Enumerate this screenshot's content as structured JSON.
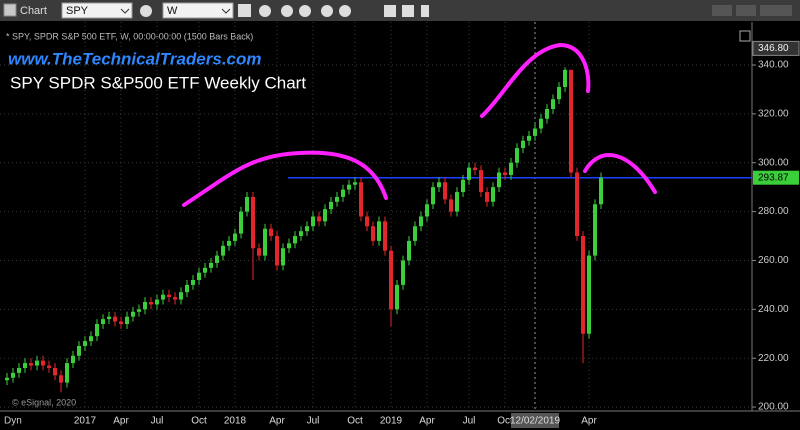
{
  "toolbar": {
    "window": "Chart",
    "symbol": "SPY",
    "interval": "W"
  },
  "chart_data": {
    "type": "candlestick",
    "header": "* SPY, SPDR S&P 500 ETF, W, 00:00-00:00 (1500 Bars Back)",
    "website": "www.TheTechnicalTraders.com",
    "title": "SPY SPDR S&P500 ETF Weekly Chart",
    "copyright": "© eSignal, 2020",
    "corner_label": "Dyn",
    "up_color": "#3ccf3c",
    "down_color": "#e3262b",
    "resistance_color": "#1f3fff",
    "grid": true,
    "ylim": [
      198.8,
      357.6
    ],
    "yticks": [
      {
        "value": 200,
        "label": "200.00"
      },
      {
        "value": 220,
        "label": "220.00"
      },
      {
        "value": 240,
        "label": "240.00"
      },
      {
        "value": 260,
        "label": "260.00"
      },
      {
        "value": 280,
        "label": "280.00"
      },
      {
        "value": 300,
        "label": "300.00"
      },
      {
        "value": 320,
        "label": "320.00"
      },
      {
        "value": 340,
        "label": "340.00"
      }
    ],
    "crosshair_price": {
      "value": 346.8,
      "label": "346.80"
    },
    "last_price": 293.87,
    "categories": [
      null,
      null,
      null,
      null,
      null,
      null,
      null,
      null,
      null,
      null,
      null,
      null,
      null,
      "2017",
      null,
      null,
      null,
      null,
      null,
      "Apr",
      null,
      null,
      null,
      null,
      null,
      "Jul",
      null,
      null,
      null,
      null,
      null,
      null,
      "Oct",
      null,
      null,
      null,
      null,
      null,
      "2018",
      null,
      null,
      null,
      null,
      null,
      null,
      "Apr",
      null,
      null,
      null,
      null,
      null,
      "Jul",
      null,
      null,
      null,
      null,
      null,
      null,
      "Oct",
      null,
      null,
      null,
      null,
      null,
      "2019",
      null,
      null,
      null,
      null,
      null,
      "Apr",
      null,
      null,
      null,
      null,
      null,
      null,
      "Jul",
      null,
      null,
      null,
      null,
      null,
      "Oct",
      null,
      null,
      null,
      null,
      "12/02/2019",
      null,
      null,
      null,
      null,
      null,
      null,
      null,
      null,
      "Apr",
      null,
      null
    ],
    "open": [
      211,
      212,
      214,
      216,
      218,
      217,
      219,
      217,
      216,
      213,
      210,
      218,
      221,
      225,
      227,
      229,
      234,
      236,
      237,
      235,
      234,
      237,
      239,
      240,
      243,
      242,
      244,
      246,
      245,
      244,
      247,
      250,
      252,
      255,
      257,
      259,
      262,
      266,
      268,
      271,
      280,
      286,
      265,
      262,
      273,
      270,
      258,
      265,
      267,
      270,
      272,
      274,
      278,
      276,
      281,
      284,
      286,
      289,
      291,
      292,
      278,
      274,
      268,
      276,
      264,
      240,
      250,
      260,
      268,
      274,
      278,
      283,
      290,
      292,
      285,
      280,
      288,
      293,
      298,
      297,
      288,
      284,
      290,
      296,
      295,
      300,
      306,
      309,
      311,
      314,
      318,
      322,
      326,
      331,
      338,
      296,
      270,
      230,
      262,
      283
    ],
    "high": [
      214,
      216,
      218,
      220,
      220,
      221,
      221,
      219,
      218,
      215,
      220,
      223,
      227,
      229,
      231,
      236,
      238,
      239,
      239,
      237,
      239,
      241,
      242,
      245,
      245,
      246,
      248,
      248,
      247,
      249,
      252,
      254,
      257,
      259,
      261,
      264,
      268,
      270,
      273,
      282,
      288,
      288,
      267,
      275,
      275,
      272,
      267,
      269,
      272,
      274,
      276,
      280,
      280,
      283,
      286,
      288,
      291,
      293,
      294,
      294,
      280,
      276,
      278,
      278,
      266,
      252,
      262,
      270,
      276,
      280,
      285,
      292,
      294,
      294,
      287,
      290,
      295,
      300,
      300,
      299,
      290,
      292,
      298,
      298,
      302,
      308,
      311,
      313,
      316,
      320,
      324,
      328,
      333,
      339.1,
      338,
      298,
      272,
      264,
      285,
      296
    ],
    "low": [
      209,
      210,
      212,
      214,
      215,
      215,
      215,
      214,
      211,
      206,
      208,
      216,
      219,
      223,
      225,
      227,
      232,
      234,
      233,
      232,
      232,
      235,
      237,
      238,
      240,
      240,
      242,
      243,
      242,
      242,
      245,
      248,
      250,
      253,
      255,
      257,
      260,
      264,
      266,
      269,
      278,
      252,
      260,
      260,
      268,
      256,
      256,
      263,
      265,
      268,
      270,
      272,
      274,
      274,
      279,
      282,
      284,
      287,
      289,
      276,
      272,
      266,
      266,
      262,
      233,
      238,
      248,
      258,
      266,
      272,
      276,
      281,
      288,
      283,
      278,
      278,
      286,
      291,
      295,
      286,
      282,
      282,
      288,
      293,
      293,
      298,
      304,
      307,
      309,
      312,
      316,
      320,
      324,
      329,
      294,
      268,
      218,
      228,
      260,
      281
    ],
    "close": [
      212,
      214,
      216,
      218,
      217,
      219,
      217,
      216,
      213,
      210,
      218,
      221,
      225,
      227,
      229,
      234,
      236,
      237,
      235,
      234,
      237,
      239,
      240,
      243,
      242,
      244,
      246,
      245,
      244,
      247,
      250,
      252,
      255,
      257,
      259,
      262,
      266,
      268,
      271,
      280,
      286,
      265,
      262,
      273,
      270,
      258,
      265,
      267,
      270,
      272,
      274,
      278,
      276,
      281,
      284,
      286,
      289,
      291,
      292,
      278,
      274,
      268,
      276,
      264,
      240,
      250,
      260,
      268,
      274,
      278,
      283,
      290,
      292,
      285,
      280,
      288,
      293,
      298,
      297,
      288,
      284,
      290,
      296,
      295,
      300,
      306,
      309,
      311,
      314,
      318,
      322,
      326,
      331,
      338,
      296,
      270,
      230,
      262,
      283,
      293.87
    ]
  }
}
